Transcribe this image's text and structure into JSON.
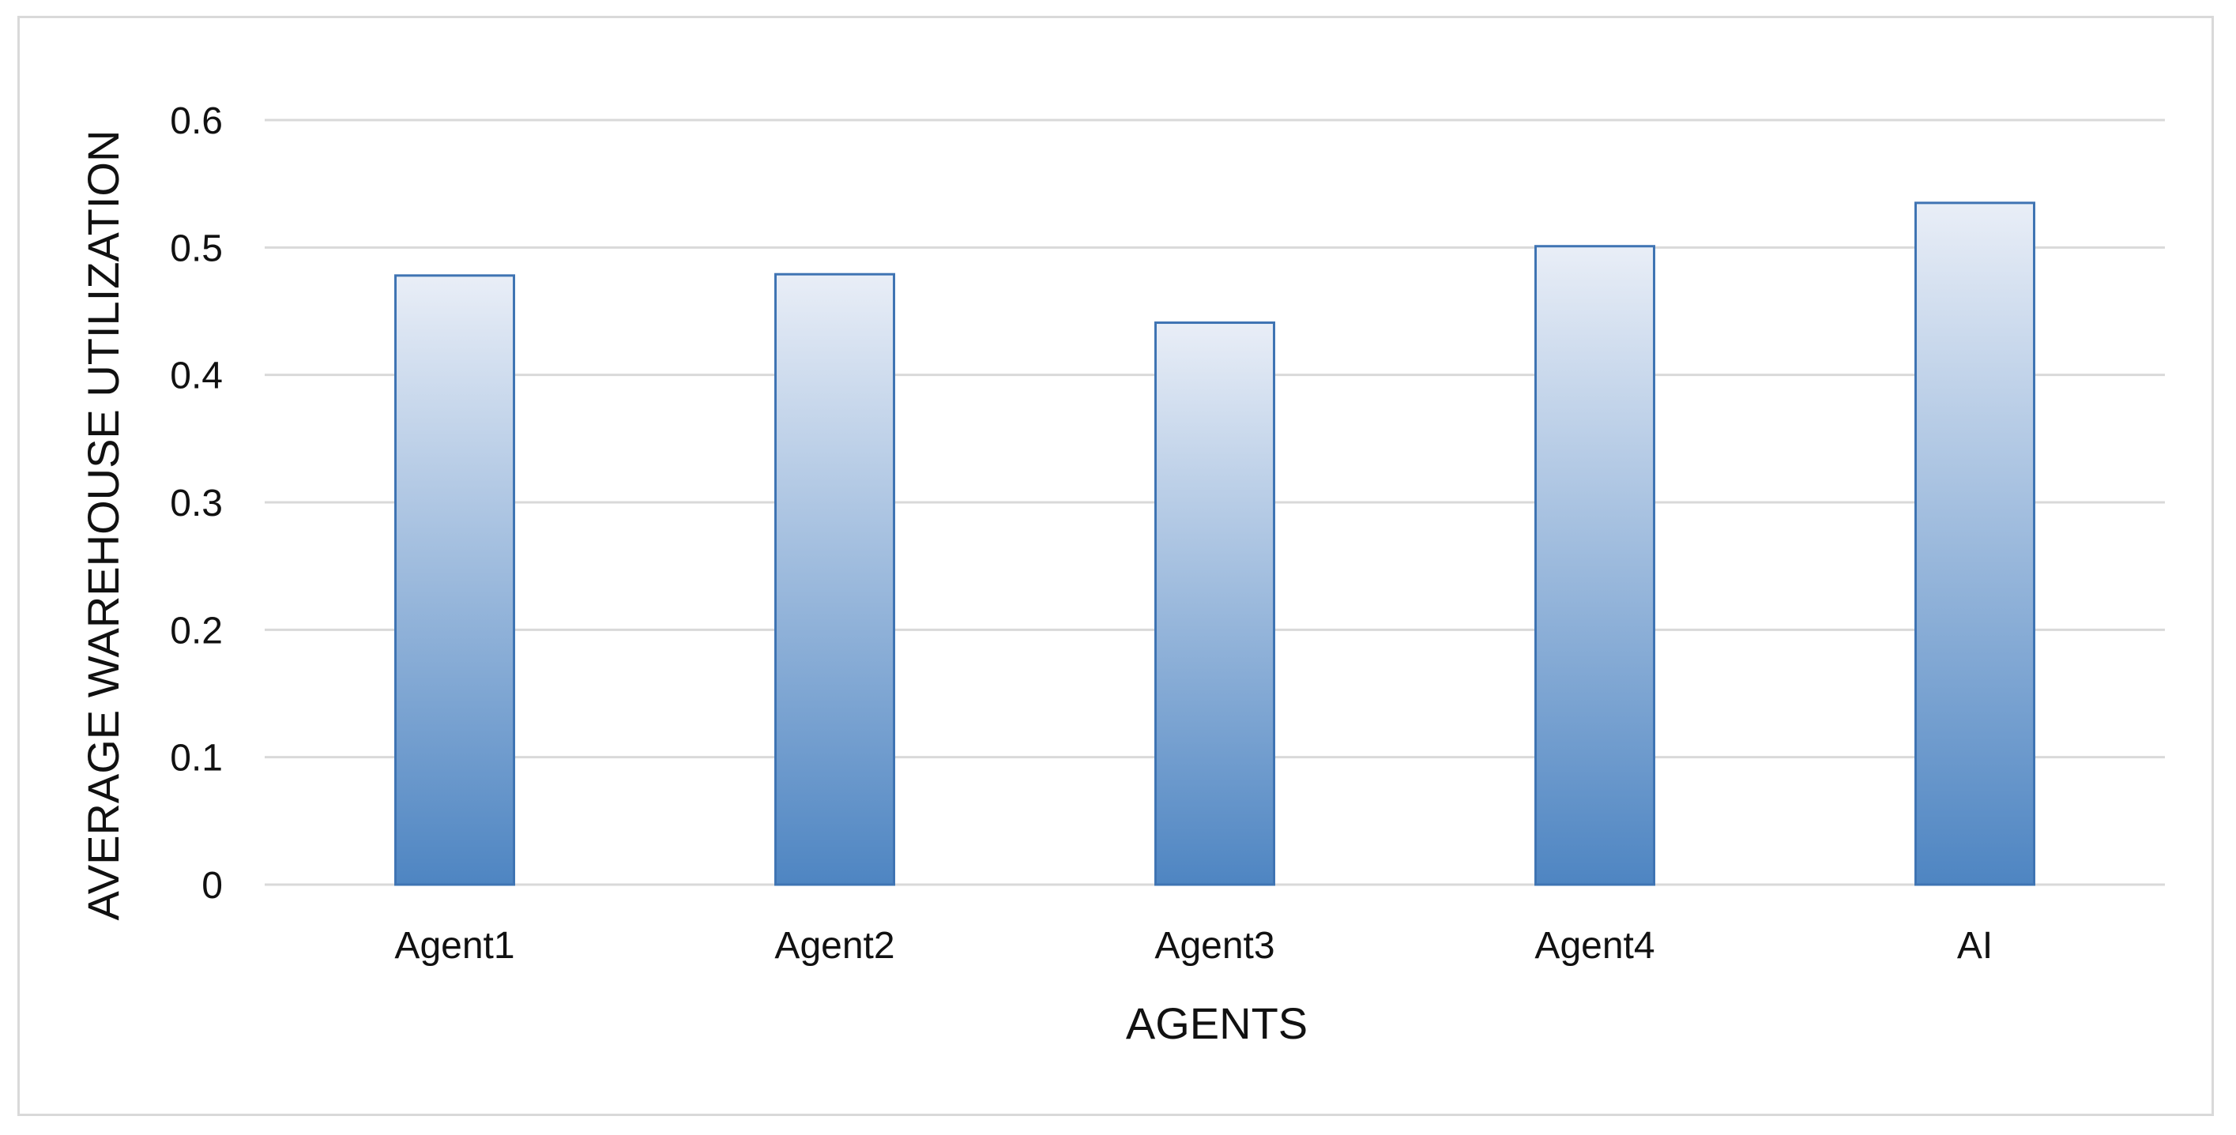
{
  "chart_data": {
    "type": "bar",
    "categories": [
      "Agent1",
      "Agent2",
      "Agent3",
      "Agent4",
      "AI"
    ],
    "series": [
      {
        "values": [
          0.478,
          0.479,
          0.441,
          0.501,
          0.535
        ]
      }
    ],
    "title": "",
    "xlabel": "AGENTS",
    "ylabel": "AVERAGE WAREHOUSE UTILIZATION",
    "ylim": [
      0,
      0.6
    ],
    "yticks": [
      "0",
      "0.1",
      "0.2",
      "0.3",
      "0.4",
      "0.5",
      "0.6"
    ],
    "grid": true,
    "legend": "none",
    "colors": {
      "bar_top": "#e9eef7",
      "bar_bottom": "#4e85c2",
      "bar_outline": "#3f74b3",
      "gridline": "#d9d9d9"
    }
  }
}
